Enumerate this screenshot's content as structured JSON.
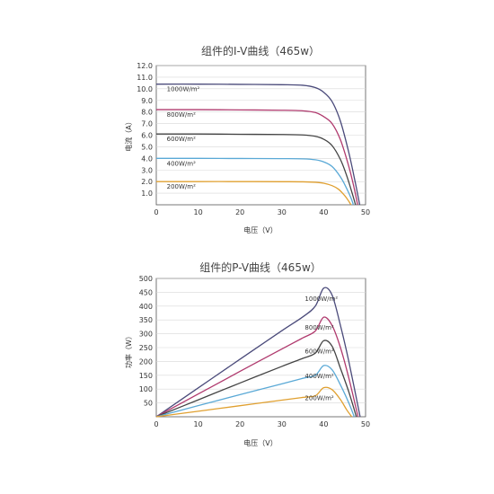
{
  "chart_data": [
    {
      "type": "line",
      "title": "组件的I-V曲线（465w）",
      "xlabel": "电压（V）",
      "ylabel": "电流（A）",
      "xlim": [
        0,
        50
      ],
      "ylim": [
        0,
        12
      ],
      "x_ticks": [
        "0",
        "10",
        "20",
        "30",
        "40",
        "50"
      ],
      "y_ticks": [
        "1.0",
        "2.0",
        "3.0",
        "4.0",
        "5.0",
        "6.0",
        "7.0",
        "8.0",
        "9.0",
        "10.0",
        "11.0",
        "12.0"
      ],
      "grid": "horizontal",
      "series": [
        {
          "name": "1000W/m²",
          "color": "#4a4a7a",
          "x": [
            0,
            10,
            20,
            30,
            35,
            38,
            40,
            42,
            44,
            46,
            47.5,
            48.6
          ],
          "y": [
            10.4,
            10.4,
            10.38,
            10.35,
            10.3,
            10.1,
            9.7,
            8.9,
            7.2,
            4.5,
            2.0,
            0
          ]
        },
        {
          "name": "800W/m²",
          "color": "#b03a6e",
          "x": [
            0,
            10,
            20,
            30,
            35,
            38,
            40,
            42,
            44,
            46,
            47.3,
            48.1
          ],
          "y": [
            8.2,
            8.2,
            8.18,
            8.15,
            8.1,
            7.95,
            7.6,
            7.0,
            5.6,
            3.3,
            1.4,
            0
          ]
        },
        {
          "name": "600W/m²",
          "color": "#444444",
          "x": [
            0,
            10,
            20,
            30,
            35,
            38,
            40,
            42,
            44,
            45.5,
            46.8,
            47.6
          ],
          "y": [
            6.1,
            6.1,
            6.08,
            6.06,
            6.02,
            5.9,
            5.65,
            5.1,
            3.9,
            2.5,
            1.0,
            0
          ]
        },
        {
          "name": "400W/m²",
          "color": "#5aa9d6",
          "x": [
            0,
            10,
            20,
            30,
            35,
            38,
            40,
            42,
            44,
            45.5,
            46.5,
            47.1
          ],
          "y": [
            4.0,
            4.0,
            3.99,
            3.98,
            3.96,
            3.88,
            3.7,
            3.3,
            2.4,
            1.4,
            0.6,
            0
          ]
        },
        {
          "name": "200W/m²",
          "color": "#e0a030",
          "x": [
            0,
            10,
            20,
            30,
            35,
            38,
            40,
            42,
            43.5,
            45,
            46,
            46.5
          ],
          "y": [
            2.0,
            2.0,
            2.0,
            1.99,
            1.98,
            1.94,
            1.86,
            1.65,
            1.35,
            0.8,
            0.3,
            0
          ]
        }
      ]
    },
    {
      "type": "line",
      "title": "组件的P-V曲线（465w）",
      "xlabel": "电压（V）",
      "ylabel": "功率（W）",
      "xlim": [
        0,
        50
      ],
      "ylim": [
        0,
        500
      ],
      "x_ticks": [
        "0",
        "10",
        "20",
        "30",
        "40",
        "50"
      ],
      "y_ticks": [
        "50",
        "100",
        "150",
        "200",
        "250",
        "300",
        "350",
        "400",
        "450",
        "500"
      ],
      "grid": "horizontal",
      "series": [
        {
          "name": "1000W/m²",
          "color": "#4a4a7a",
          "x": [
            0,
            10,
            20,
            30,
            35,
            38,
            40,
            42,
            44,
            46,
            48.7
          ],
          "y": [
            0,
            104,
            208,
            311,
            361,
            400,
            465,
            440,
            330,
            200,
            0
          ]
        },
        {
          "name": "800W/m²",
          "color": "#b03a6e",
          "x": [
            0,
            10,
            20,
            30,
            35,
            38,
            40,
            42,
            44,
            46,
            48.2
          ],
          "y": [
            0,
            82,
            164,
            245,
            285,
            310,
            360,
            330,
            250,
            140,
            0
          ]
        },
        {
          "name": "600W/m²",
          "color": "#444444",
          "x": [
            0,
            10,
            20,
            30,
            35,
            38,
            40,
            42,
            44,
            46,
            47.8
          ],
          "y": [
            0,
            61,
            122,
            182,
            211,
            230,
            275,
            255,
            175,
            90,
            0
          ]
        },
        {
          "name": "400W/m²",
          "color": "#5aa9d6",
          "x": [
            0,
            10,
            20,
            30,
            35,
            38,
            40,
            42,
            44,
            46,
            47.3
          ],
          "y": [
            0,
            40,
            80,
            119,
            139,
            150,
            185,
            170,
            115,
            50,
            0
          ]
        },
        {
          "name": "200W/m²",
          "color": "#e0a030",
          "x": [
            0,
            10,
            20,
            30,
            35,
            38,
            40,
            42,
            44,
            45.5,
            46.7
          ],
          "y": [
            0,
            20,
            40,
            60,
            70,
            76,
            105,
            98,
            62,
            25,
            0
          ]
        }
      ]
    }
  ]
}
